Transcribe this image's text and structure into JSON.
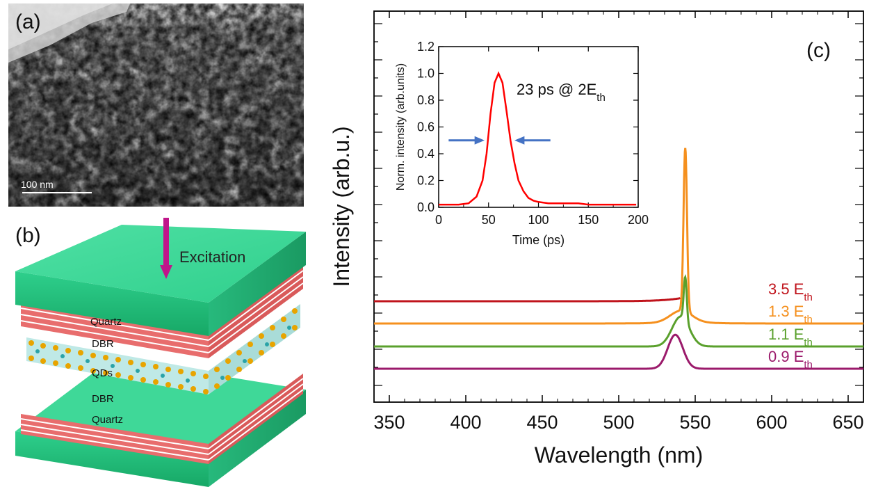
{
  "panels": {
    "a": {
      "label": "(a)",
      "scale_bar_text": "100 nm"
    },
    "b": {
      "label": "(b)",
      "excitation_label": "Excitation",
      "layers": [
        "Quartz",
        "DBR",
        "QDs",
        "DBR",
        "Quartz"
      ]
    },
    "c": {
      "label": "(c)"
    }
  },
  "colors": {
    "c35": "#c0141c",
    "c13": "#f5901e",
    "c11": "#5aa02c",
    "c09": "#9b1a6b",
    "inset": "#ff0000",
    "arrow": "#4472c4",
    "green": "#33cc88",
    "dbr": "#e86d6d",
    "excitation": "#c0158a"
  },
  "chart_data": [
    {
      "type": "line",
      "title": "",
      "xlabel": "Wavelength (nm)",
      "ylabel": "Intensity (arb.u.)",
      "xlim": [
        340,
        660
      ],
      "xticks": [
        350,
        400,
        450,
        500,
        550,
        600,
        650
      ],
      "y_tick_labels_shown": false,
      "series": [
        {
          "name": "3.5 E",
          "subscript": "th",
          "color_key": "c35",
          "baseline": 0.0,
          "peak_x": 543.5,
          "peak_height": 2.85,
          "peak_width": 1.2,
          "broad_height": 0.0,
          "broad_width": 0
        },
        {
          "name": "1.3 E",
          "subscript": "th",
          "color_key": "c13",
          "baseline": 0.0,
          "peak_x": 543.5,
          "peak_height": 1.2,
          "peak_width": 1.6,
          "broad_height": 0.08,
          "broad_width": 10
        },
        {
          "name": "1.1 E",
          "subscript": "th",
          "color_key": "c11",
          "baseline": 0.0,
          "peak_x": 543.5,
          "peak_height": 0.32,
          "peak_width": 1.4,
          "broad_height": 0.22,
          "broad_width": 8
        },
        {
          "name": "0.9 E",
          "subscript": "th",
          "color_key": "c09",
          "baseline": 0.0,
          "peak_x": 540,
          "peak_height": 0.0,
          "peak_width": 1,
          "broad_height": 0.25,
          "broad_width": 7
        }
      ]
    },
    {
      "type": "line",
      "title": "",
      "annotation": "23 ps @ 2E",
      "annotation_sub": "th",
      "xlabel": "Time (ps)",
      "ylabel": "Norm. intensity (arb.units)",
      "xlim": [
        0,
        200
      ],
      "ylim": [
        0,
        1.2
      ],
      "xticks": [
        0,
        50,
        100,
        150,
        200
      ],
      "yticks": [
        0.0,
        0.2,
        0.4,
        0.6,
        0.8,
        1.0,
        1.2
      ],
      "fwhm_ps": 23,
      "peak_time_ps": 60,
      "series": [
        {
          "name": "pulse",
          "x": [
            0,
            10,
            20,
            30,
            38,
            44,
            48,
            52,
            56,
            60,
            64,
            68,
            72,
            76,
            80,
            85,
            90,
            95,
            100,
            110,
            120,
            130,
            140,
            150,
            160,
            170,
            180,
            190,
            198
          ],
          "y": [
            0.02,
            0.02,
            0.02,
            0.03,
            0.08,
            0.2,
            0.4,
            0.7,
            0.93,
            1.0,
            0.93,
            0.72,
            0.5,
            0.33,
            0.2,
            0.12,
            0.07,
            0.05,
            0.04,
            0.03,
            0.03,
            0.03,
            0.03,
            0.02,
            0.02,
            0.02,
            0.02,
            0.02,
            0.02
          ]
        }
      ]
    }
  ]
}
